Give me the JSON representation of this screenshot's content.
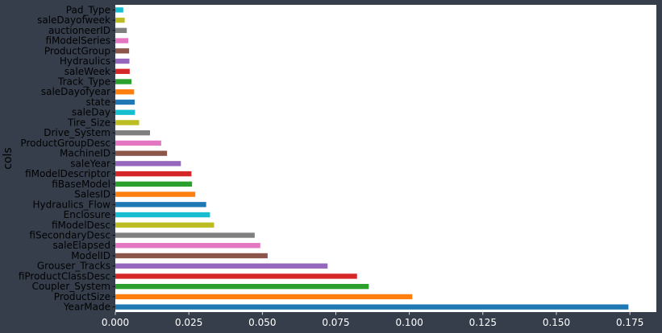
{
  "chart_data": {
    "type": "bar",
    "orientation": "horizontal",
    "xlabel": "",
    "ylabel": "cols",
    "xlim": [
      0.0,
      0.184
    ],
    "xticks": [
      "0.000",
      "0.025",
      "0.050",
      "0.075",
      "0.100",
      "0.125",
      "0.150",
      "0.175"
    ],
    "xtick_values": [
      0.0,
      0.025,
      0.05,
      0.075,
      0.1,
      0.125,
      0.15,
      0.175
    ],
    "grid": false,
    "legend": "none",
    "categories": [
      "YearMade",
      "ProductSize",
      "Coupler_System",
      "fiProductClassDesc",
      "Grouser_Tracks",
      "ModelID",
      "saleElapsed",
      "fiSecondaryDesc",
      "fiModelDesc",
      "Enclosure",
      "Hydraulics_Flow",
      "SalesID",
      "fiBaseModel",
      "fiModelDescriptor",
      "saleYear",
      "MachineID",
      "ProductGroupDesc",
      "Drive_System",
      "Tire_Size",
      "saleDay",
      "state",
      "saleDayofyear",
      "Track_Type",
      "saleWeek",
      "Hydraulics",
      "ProductGroup",
      "fiModelSeries",
      "auctioneerID",
      "saleDayofweek",
      "Pad_Type"
    ],
    "values": [
      0.1745,
      0.101,
      0.0862,
      0.0822,
      0.0722,
      0.0518,
      0.0493,
      0.0474,
      0.0336,
      0.0322,
      0.0309,
      0.0272,
      0.0261,
      0.0259,
      0.0223,
      0.0176,
      0.0156,
      0.0118,
      0.0081,
      0.0067,
      0.0066,
      0.0064,
      0.0055,
      0.0049,
      0.0048,
      0.0047,
      0.0044,
      0.0039,
      0.0032,
      0.0027
    ],
    "colors": [
      "#1f77b4",
      "#ff7f0e",
      "#2ca02c",
      "#d62728",
      "#9467bd",
      "#8c564b",
      "#e377c2",
      "#7f7f7f",
      "#bcbd22",
      "#17becf"
    ]
  }
}
